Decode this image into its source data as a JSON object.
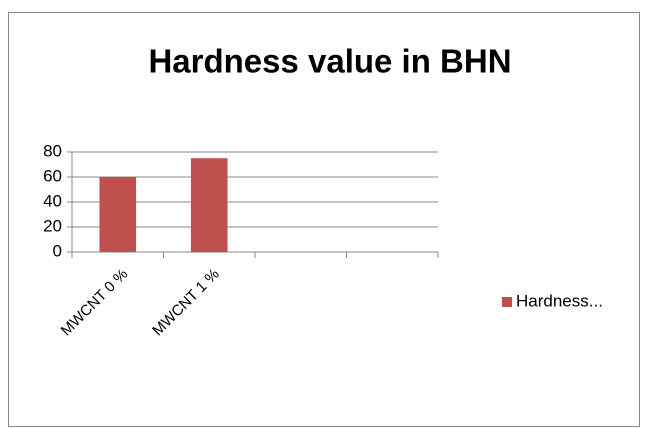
{
  "chart_data": {
    "type": "bar",
    "title": "Hardness value in BHN",
    "categories": [
      "MWCNT 0 %",
      "MWCNT 1 %",
      null,
      null
    ],
    "series": [
      {
        "name": "Hardness...",
        "color": "#c0504d",
        "values": [
          60,
          75,
          null,
          null
        ]
      }
    ],
    "ylim": [
      0,
      80
    ],
    "yticks": [
      0,
      20,
      40,
      60,
      80
    ],
    "grid": true,
    "legend": "right"
  }
}
